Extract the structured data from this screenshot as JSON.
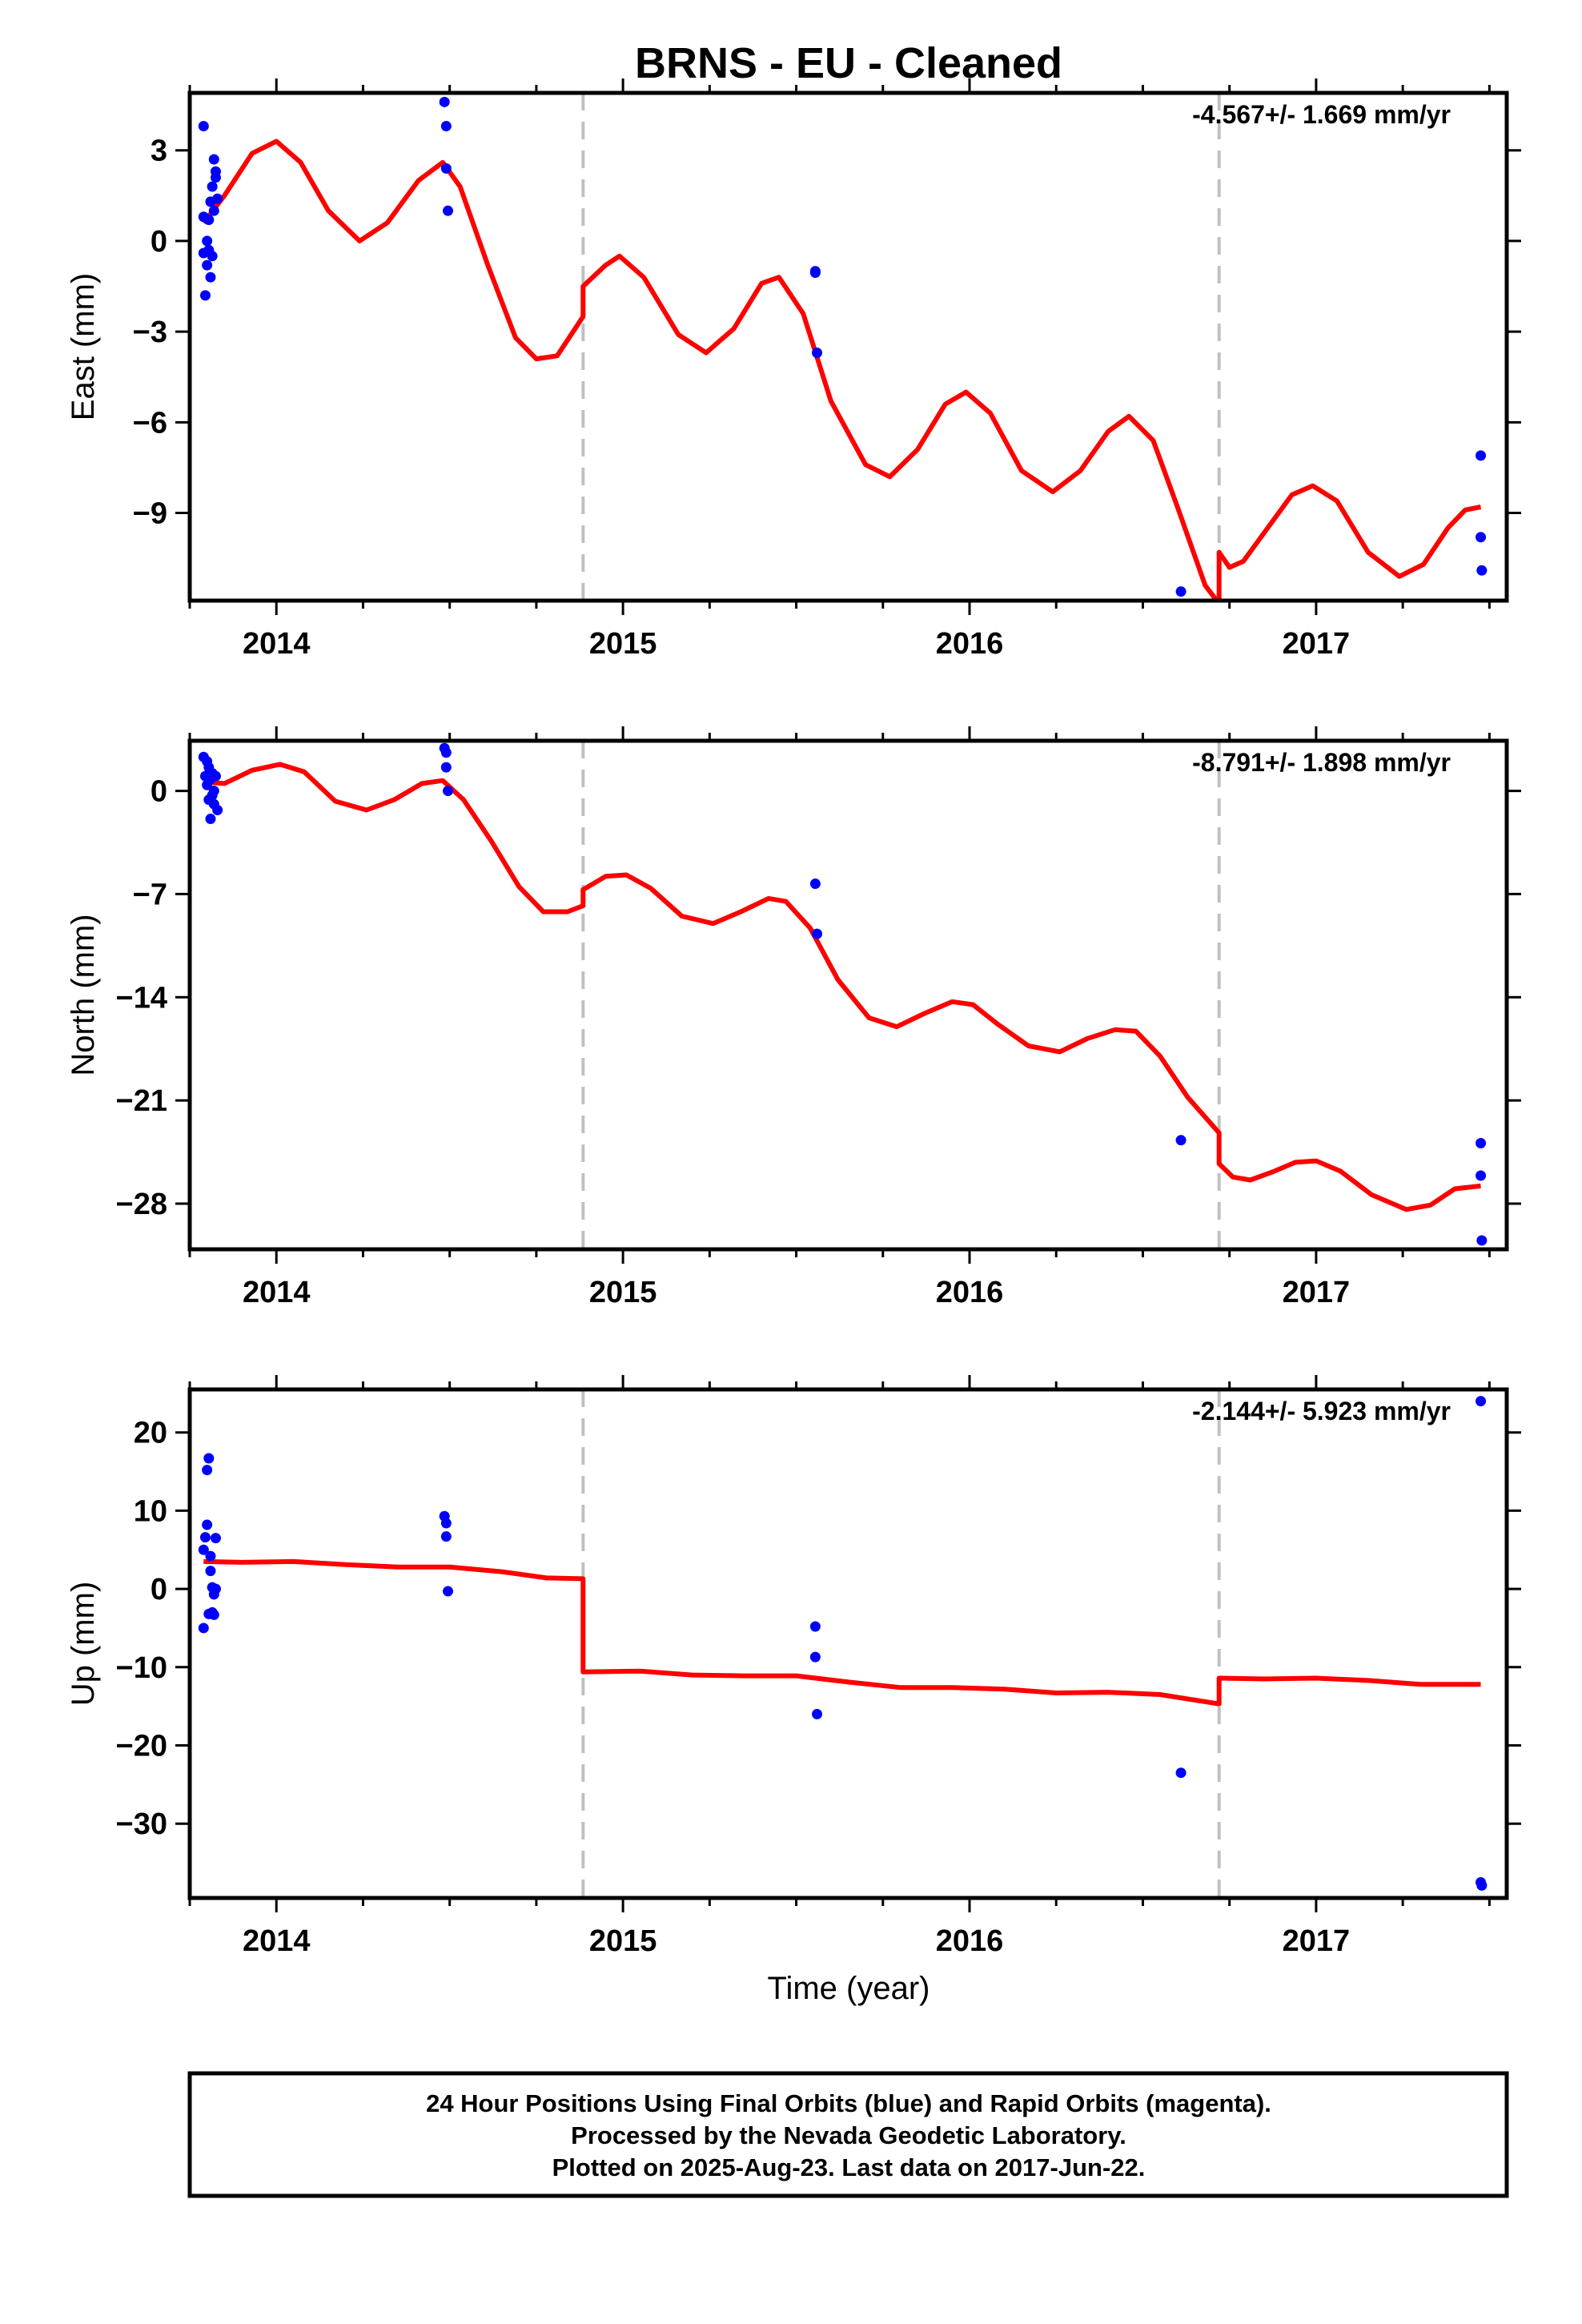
{
  "title": "BRNS  - EU - Cleaned",
  "xlabel": "Time (year)",
  "footer": [
    "24 Hour Positions Using Final Orbits (blue) and Rapid Orbits (magenta).",
    "Processed by the Nevada Geodetic Laboratory.",
    "Plotted on 2025-Aug-23. Last data on 2017-Jun-22."
  ],
  "colors": {
    "points": "#0000ff",
    "model": "#ff0000",
    "breaks": "#c0c0c0",
    "frame": "#000000"
  },
  "chart_data": [
    {
      "type": "scatter",
      "component": "East",
      "ylabel": "East (mm)",
      "rate": "-4.567+/- 1.669 mm/yr",
      "xlim": [
        2013.75,
        2017.55
      ],
      "ylim": [
        -11.9,
        4.9
      ],
      "xticks": [
        2014,
        2015,
        2016,
        2017
      ],
      "xtick_labels": [
        "2014",
        "2015",
        "2016",
        "2017"
      ],
      "yticks": [
        3,
        0,
        -3,
        -6,
        -9
      ],
      "ytick_labels": [
        "3",
        "0",
        "−3",
        "−6",
        "−9"
      ],
      "breaks": [
        2014.885,
        2016.72
      ],
      "points": [
        {
          "x": 2013.79,
          "y": 3.8
        },
        {
          "x": 2013.79,
          "y": 0.8
        },
        {
          "x": 2013.79,
          "y": -0.4
        },
        {
          "x": 2013.795,
          "y": -1.8
        },
        {
          "x": 2013.8,
          "y": -0.8
        },
        {
          "x": 2013.8,
          "y": 0.0
        },
        {
          "x": 2013.805,
          "y": -0.3
        },
        {
          "x": 2013.805,
          "y": 0.7
        },
        {
          "x": 2013.81,
          "y": -1.2
        },
        {
          "x": 2013.81,
          "y": 1.3
        },
        {
          "x": 2013.815,
          "y": -0.5
        },
        {
          "x": 2013.815,
          "y": 1.8
        },
        {
          "x": 2013.82,
          "y": 2.7
        },
        {
          "x": 2013.82,
          "y": 1.0
        },
        {
          "x": 2013.825,
          "y": 2.1
        },
        {
          "x": 2013.825,
          "y": 2.3
        },
        {
          "x": 2013.83,
          "y": 1.4
        },
        {
          "x": 2014.485,
          "y": 4.6
        },
        {
          "x": 2014.49,
          "y": 3.8
        },
        {
          "x": 2014.49,
          "y": 2.4
        },
        {
          "x": 2014.495,
          "y": 1.0
        },
        {
          "x": 2015.555,
          "y": -1.0
        },
        {
          "x": 2015.555,
          "y": -1.05
        },
        {
          "x": 2015.56,
          "y": -3.7
        },
        {
          "x": 2016.61,
          "y": -11.6
        },
        {
          "x": 2017.475,
          "y": -7.1
        },
        {
          "x": 2017.475,
          "y": -9.8
        },
        {
          "x": 2017.478,
          "y": -10.9
        }
      ],
      "model": [
        {
          "x": 2013.79,
          "y": 0.6
        },
        {
          "x": 2013.85,
          "y": 1.5
        },
        {
          "x": 2013.93,
          "y": 2.9
        },
        {
          "x": 2014.0,
          "y": 3.3
        },
        {
          "x": 2014.07,
          "y": 2.6
        },
        {
          "x": 2014.15,
          "y": 1.0
        },
        {
          "x": 2014.24,
          "y": 0.0
        },
        {
          "x": 2014.32,
          "y": 0.6
        },
        {
          "x": 2014.41,
          "y": 2.0
        },
        {
          "x": 2014.48,
          "y": 2.6
        },
        {
          "x": 2014.53,
          "y": 1.8
        },
        {
          "x": 2014.61,
          "y": -0.8
        },
        {
          "x": 2014.69,
          "y": -3.2
        },
        {
          "x": 2014.75,
          "y": -3.9
        },
        {
          "x": 2014.81,
          "y": -3.8
        },
        {
          "x": 2014.885,
          "y": -2.5
        },
        {
          "x": 2014.885,
          "y": -1.5
        },
        {
          "x": 2014.95,
          "y": -0.8
        },
        {
          "x": 2014.99,
          "y": -0.5
        },
        {
          "x": 2015.06,
          "y": -1.2
        },
        {
          "x": 2015.16,
          "y": -3.1
        },
        {
          "x": 2015.24,
          "y": -3.7
        },
        {
          "x": 2015.32,
          "y": -2.9
        },
        {
          "x": 2015.4,
          "y": -1.4
        },
        {
          "x": 2015.45,
          "y": -1.2
        },
        {
          "x": 2015.52,
          "y": -2.4
        },
        {
          "x": 2015.6,
          "y": -5.3
        },
        {
          "x": 2015.7,
          "y": -7.4
        },
        {
          "x": 2015.77,
          "y": -7.8
        },
        {
          "x": 2015.85,
          "y": -6.9
        },
        {
          "x": 2015.93,
          "y": -5.4
        },
        {
          "x": 2015.99,
          "y": -5.0
        },
        {
          "x": 2016.06,
          "y": -5.7
        },
        {
          "x": 2016.15,
          "y": -7.6
        },
        {
          "x": 2016.24,
          "y": -8.3
        },
        {
          "x": 2016.32,
          "y": -7.6
        },
        {
          "x": 2016.4,
          "y": -6.3
        },
        {
          "x": 2016.46,
          "y": -5.8
        },
        {
          "x": 2016.53,
          "y": -6.6
        },
        {
          "x": 2016.6,
          "y": -8.8
        },
        {
          "x": 2016.68,
          "y": -11.4
        },
        {
          "x": 2016.72,
          "y": -12.0
        },
        {
          "x": 2016.72,
          "y": -10.3
        },
        {
          "x": 2016.75,
          "y": -10.8
        },
        {
          "x": 2016.79,
          "y": -10.6
        },
        {
          "x": 2016.86,
          "y": -9.5
        },
        {
          "x": 2016.93,
          "y": -8.4
        },
        {
          "x": 2016.99,
          "y": -8.1
        },
        {
          "x": 2017.06,
          "y": -8.6
        },
        {
          "x": 2017.15,
          "y": -10.3
        },
        {
          "x": 2017.24,
          "y": -11.1
        },
        {
          "x": 2017.31,
          "y": -10.7
        },
        {
          "x": 2017.38,
          "y": -9.5
        },
        {
          "x": 2017.43,
          "y": -8.9
        },
        {
          "x": 2017.475,
          "y": -8.8
        }
      ]
    },
    {
      "type": "scatter",
      "component": "North",
      "ylabel": "North (mm)",
      "rate": "-8.791+/- 1.898 mm/yr",
      "xlim": [
        2013.75,
        2017.55
      ],
      "ylim": [
        -31.1,
        3.4
      ],
      "xticks": [
        2014,
        2015,
        2016,
        2017
      ],
      "xtick_labels": [
        "2014",
        "2015",
        "2016",
        "2017"
      ],
      "yticks": [
        0,
        -7,
        -14,
        -21,
        -28
      ],
      "ytick_labels": [
        "0",
        "−7",
        "−14",
        "−21",
        "−28"
      ],
      "breaks": [
        2014.885,
        2016.72
      ],
      "points": [
        {
          "x": 2013.79,
          "y": 2.3
        },
        {
          "x": 2013.795,
          "y": 1.0
        },
        {
          "x": 2013.8,
          "y": 2.0
        },
        {
          "x": 2013.8,
          "y": 0.4
        },
        {
          "x": 2013.805,
          "y": -0.6
        },
        {
          "x": 2013.805,
          "y": 1.6
        },
        {
          "x": 2013.81,
          "y": -1.9
        },
        {
          "x": 2013.81,
          "y": 0.8
        },
        {
          "x": 2013.815,
          "y": 1.2
        },
        {
          "x": 2013.815,
          "y": -0.3
        },
        {
          "x": 2013.82,
          "y": 0.0
        },
        {
          "x": 2013.82,
          "y": -0.9
        },
        {
          "x": 2013.825,
          "y": 1.0
        },
        {
          "x": 2013.83,
          "y": -1.3
        },
        {
          "x": 2014.485,
          "y": 2.9
        },
        {
          "x": 2014.49,
          "y": 2.6
        },
        {
          "x": 2014.49,
          "y": 1.6
        },
        {
          "x": 2014.495,
          "y": 0.0
        },
        {
          "x": 2015.555,
          "y": -6.3
        },
        {
          "x": 2015.56,
          "y": -9.7
        },
        {
          "x": 2016.61,
          "y": -23.7
        },
        {
          "x": 2017.475,
          "y": -23.9
        },
        {
          "x": 2017.475,
          "y": -26.1
        },
        {
          "x": 2017.478,
          "y": -30.5
        }
      ],
      "model": [
        {
          "x": 2013.79,
          "y": 0.6
        },
        {
          "x": 2013.85,
          "y": 0.5
        },
        {
          "x": 2013.93,
          "y": 1.4
        },
        {
          "x": 2014.01,
          "y": 1.8
        },
        {
          "x": 2014.08,
          "y": 1.3
        },
        {
          "x": 2014.17,
          "y": -0.7
        },
        {
          "x": 2014.26,
          "y": -1.3
        },
        {
          "x": 2014.34,
          "y": -0.6
        },
        {
          "x": 2014.42,
          "y": 0.5
        },
        {
          "x": 2014.48,
          "y": 0.7
        },
        {
          "x": 2014.54,
          "y": -0.6
        },
        {
          "x": 2014.62,
          "y": -3.4
        },
        {
          "x": 2014.7,
          "y": -6.5
        },
        {
          "x": 2014.77,
          "y": -8.2
        },
        {
          "x": 2014.84,
          "y": -8.2
        },
        {
          "x": 2014.885,
          "y": -7.8
        },
        {
          "x": 2014.885,
          "y": -6.7
        },
        {
          "x": 2014.95,
          "y": -5.8
        },
        {
          "x": 2015.01,
          "y": -5.7
        },
        {
          "x": 2015.08,
          "y": -6.6
        },
        {
          "x": 2015.17,
          "y": -8.5
        },
        {
          "x": 2015.26,
          "y": -9.0
        },
        {
          "x": 2015.34,
          "y": -8.2
        },
        {
          "x": 2015.42,
          "y": -7.3
        },
        {
          "x": 2015.47,
          "y": -7.5
        },
        {
          "x": 2015.54,
          "y": -9.3
        },
        {
          "x": 2015.62,
          "y": -12.8
        },
        {
          "x": 2015.71,
          "y": -15.4
        },
        {
          "x": 2015.79,
          "y": -16.0
        },
        {
          "x": 2015.87,
          "y": -15.1
        },
        {
          "x": 2015.95,
          "y": -14.3
        },
        {
          "x": 2016.01,
          "y": -14.5
        },
        {
          "x": 2016.08,
          "y": -15.8
        },
        {
          "x": 2016.17,
          "y": -17.3
        },
        {
          "x": 2016.26,
          "y": -17.7
        },
        {
          "x": 2016.34,
          "y": -16.8
        },
        {
          "x": 2016.42,
          "y": -16.2
        },
        {
          "x": 2016.48,
          "y": -16.3
        },
        {
          "x": 2016.55,
          "y": -18.0
        },
        {
          "x": 2016.63,
          "y": -20.8
        },
        {
          "x": 2016.72,
          "y": -23.2
        },
        {
          "x": 2016.72,
          "y": -25.3
        },
        {
          "x": 2016.76,
          "y": -26.2
        },
        {
          "x": 2016.81,
          "y": -26.4
        },
        {
          "x": 2016.88,
          "y": -25.8
        },
        {
          "x": 2016.94,
          "y": -25.2
        },
        {
          "x": 2017.0,
          "y": -25.1
        },
        {
          "x": 2017.07,
          "y": -25.8
        },
        {
          "x": 2017.16,
          "y": -27.4
        },
        {
          "x": 2017.26,
          "y": -28.4
        },
        {
          "x": 2017.33,
          "y": -28.1
        },
        {
          "x": 2017.4,
          "y": -27.0
        },
        {
          "x": 2017.475,
          "y": -26.8
        }
      ]
    },
    {
      "type": "scatter",
      "component": "Up",
      "ylabel": "Up (mm)",
      "rate": "-2.144+/- 5.923 mm/yr",
      "xlim": [
        2013.75,
        2017.55
      ],
      "ylim": [
        -39.5,
        25.5
      ],
      "xticks": [
        2014,
        2015,
        2016,
        2017
      ],
      "xtick_labels": [
        "2014",
        "2015",
        "2016",
        "2017"
      ],
      "yticks": [
        20,
        10,
        0,
        -10,
        -20,
        -30
      ],
      "ytick_labels": [
        "20",
        "10",
        "0",
        "−10",
        "−20",
        "−30"
      ],
      "breaks": [
        2014.885,
        2016.72
      ],
      "points": [
        {
          "x": 2013.79,
          "y": 5.0
        },
        {
          "x": 2013.79,
          "y": -5.0
        },
        {
          "x": 2013.795,
          "y": 6.6
        },
        {
          "x": 2013.8,
          "y": 8.2
        },
        {
          "x": 2013.8,
          "y": 15.2
        },
        {
          "x": 2013.805,
          "y": 16.7
        },
        {
          "x": 2013.805,
          "y": -3.2
        },
        {
          "x": 2013.81,
          "y": 4.2
        },
        {
          "x": 2013.81,
          "y": 2.3
        },
        {
          "x": 2013.815,
          "y": -3.0
        },
        {
          "x": 2013.815,
          "y": 0.2
        },
        {
          "x": 2013.82,
          "y": -0.7
        },
        {
          "x": 2013.82,
          "y": -3.3
        },
        {
          "x": 2013.825,
          "y": 6.5
        },
        {
          "x": 2013.825,
          "y": 0.0
        },
        {
          "x": 2014.485,
          "y": 9.3
        },
        {
          "x": 2014.49,
          "y": 8.4
        },
        {
          "x": 2014.49,
          "y": 6.7
        },
        {
          "x": 2014.495,
          "y": -0.3
        },
        {
          "x": 2015.555,
          "y": -4.8
        },
        {
          "x": 2015.555,
          "y": -8.7
        },
        {
          "x": 2015.56,
          "y": -16.0
        },
        {
          "x": 2016.61,
          "y": -23.5
        },
        {
          "x": 2017.475,
          "y": 24.0
        },
        {
          "x": 2017.475,
          "y": -37.5
        },
        {
          "x": 2017.478,
          "y": -37.9
        }
      ],
      "model": [
        {
          "x": 2013.79,
          "y": 3.5
        },
        {
          "x": 2013.9,
          "y": 3.4
        },
        {
          "x": 2014.05,
          "y": 3.5
        },
        {
          "x": 2014.2,
          "y": 3.1
        },
        {
          "x": 2014.35,
          "y": 2.8
        },
        {
          "x": 2014.5,
          "y": 2.8
        },
        {
          "x": 2014.65,
          "y": 2.2
        },
        {
          "x": 2014.78,
          "y": 1.4
        },
        {
          "x": 2014.885,
          "y": 1.3
        },
        {
          "x": 2014.885,
          "y": -10.6
        },
        {
          "x": 2015.05,
          "y": -10.5
        },
        {
          "x": 2015.2,
          "y": -11.0
        },
        {
          "x": 2015.35,
          "y": -11.1
        },
        {
          "x": 2015.5,
          "y": -11.1
        },
        {
          "x": 2015.65,
          "y": -11.9
        },
        {
          "x": 2015.8,
          "y": -12.6
        },
        {
          "x": 2015.95,
          "y": -12.6
        },
        {
          "x": 2016.1,
          "y": -12.8
        },
        {
          "x": 2016.25,
          "y": -13.3
        },
        {
          "x": 2016.4,
          "y": -13.2
        },
        {
          "x": 2016.55,
          "y": -13.5
        },
        {
          "x": 2016.72,
          "y": -14.7
        },
        {
          "x": 2016.72,
          "y": -11.4
        },
        {
          "x": 2016.85,
          "y": -11.5
        },
        {
          "x": 2017.0,
          "y": -11.4
        },
        {
          "x": 2017.15,
          "y": -11.7
        },
        {
          "x": 2017.3,
          "y": -12.2
        },
        {
          "x": 2017.475,
          "y": -12.2
        }
      ]
    }
  ]
}
